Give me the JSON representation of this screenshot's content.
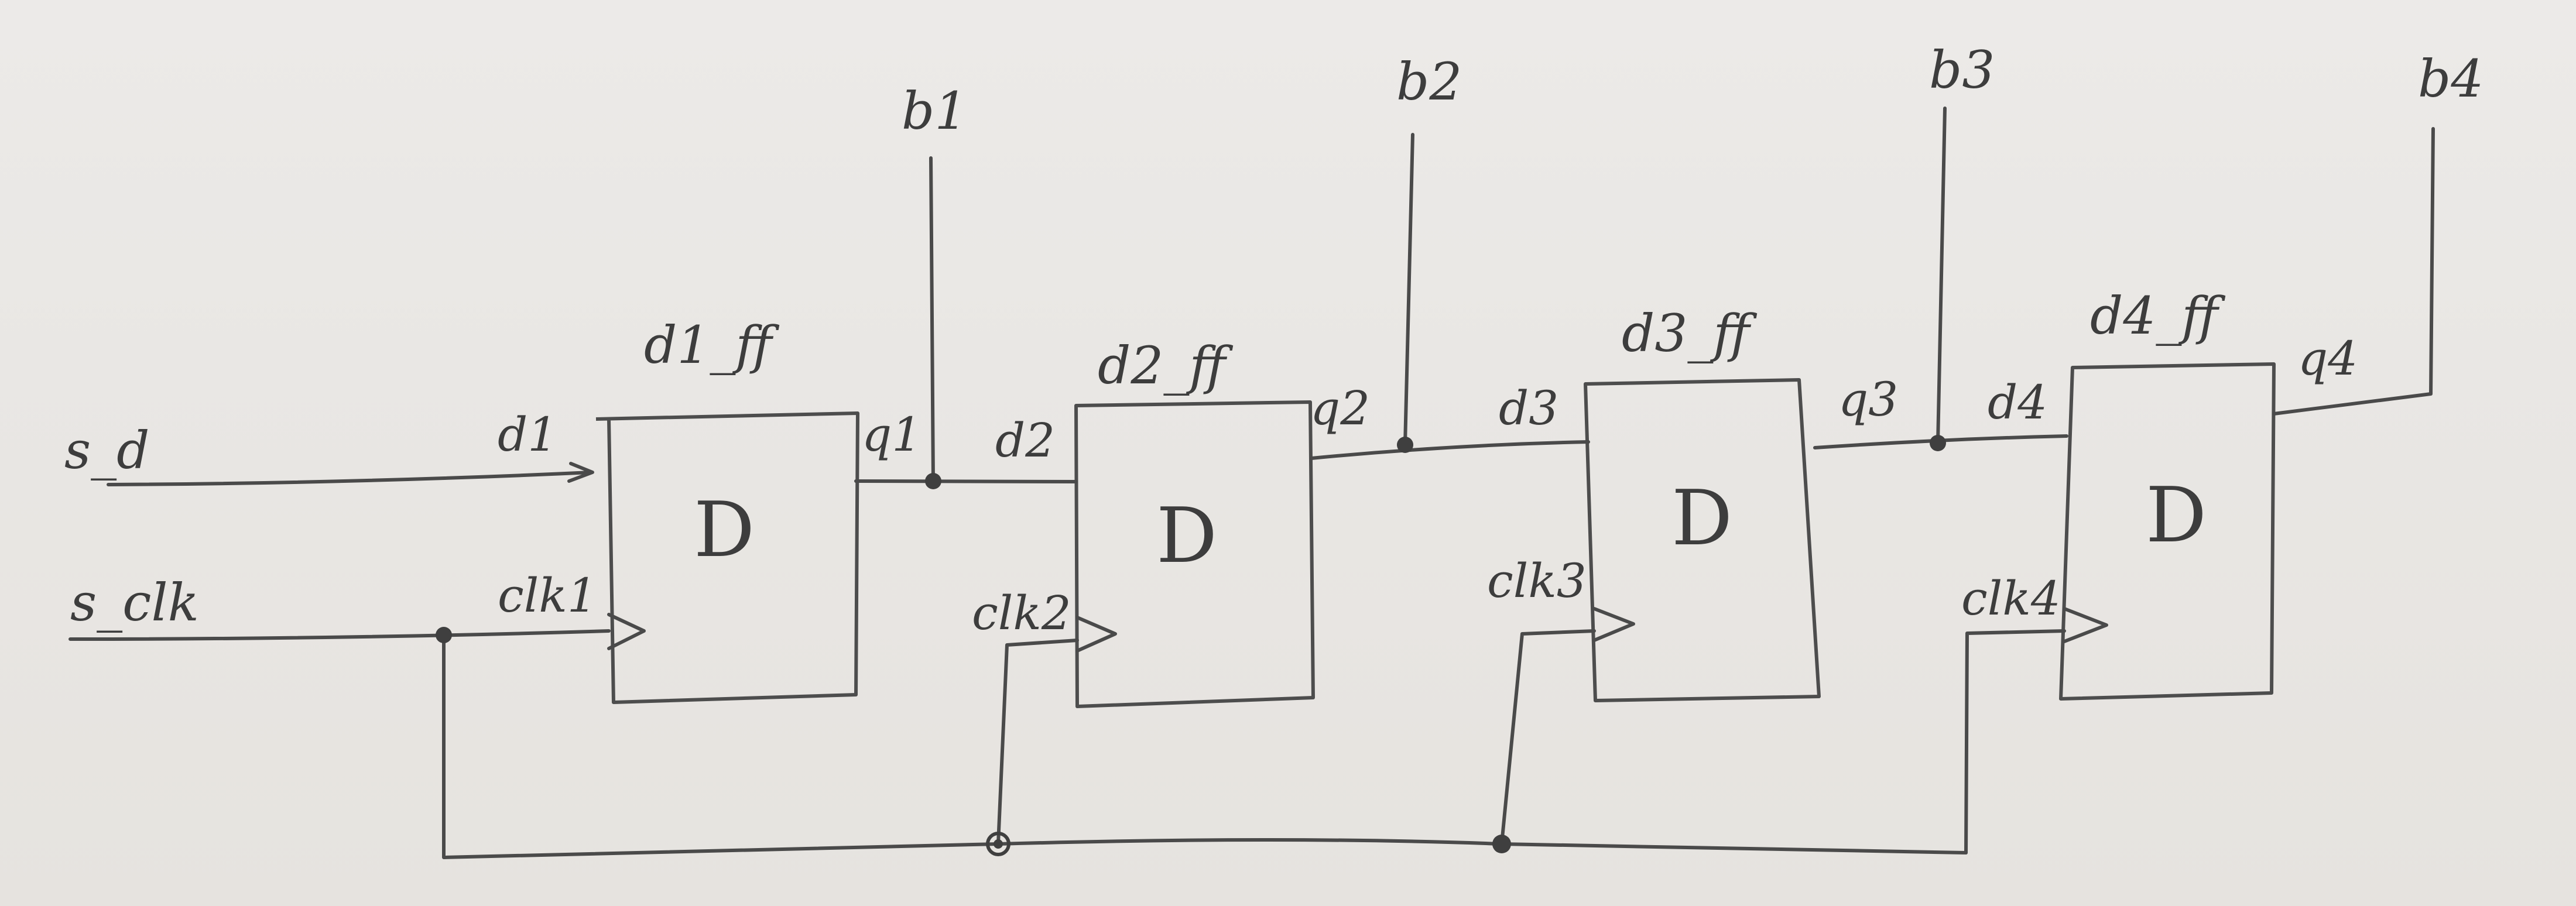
{
  "inputs": {
    "data": "s_d",
    "clock": "s_clk"
  },
  "outputs": [
    "b1",
    "b2",
    "b3",
    "b4"
  ],
  "flipflops": [
    {
      "name": "d1_ff",
      "d": "d1",
      "q": "q1",
      "clk": "clk1",
      "type": "D"
    },
    {
      "name": "d2_ff",
      "d": "d2",
      "q": "q2",
      "clk": "clk2",
      "type": "D"
    },
    {
      "name": "d3_ff",
      "d": "d3",
      "q": "q3",
      "clk": "clk3",
      "type": "D"
    },
    {
      "name": "d4_ff",
      "d": "d4",
      "q": "q4",
      "clk": "clk4",
      "type": "D"
    }
  ]
}
